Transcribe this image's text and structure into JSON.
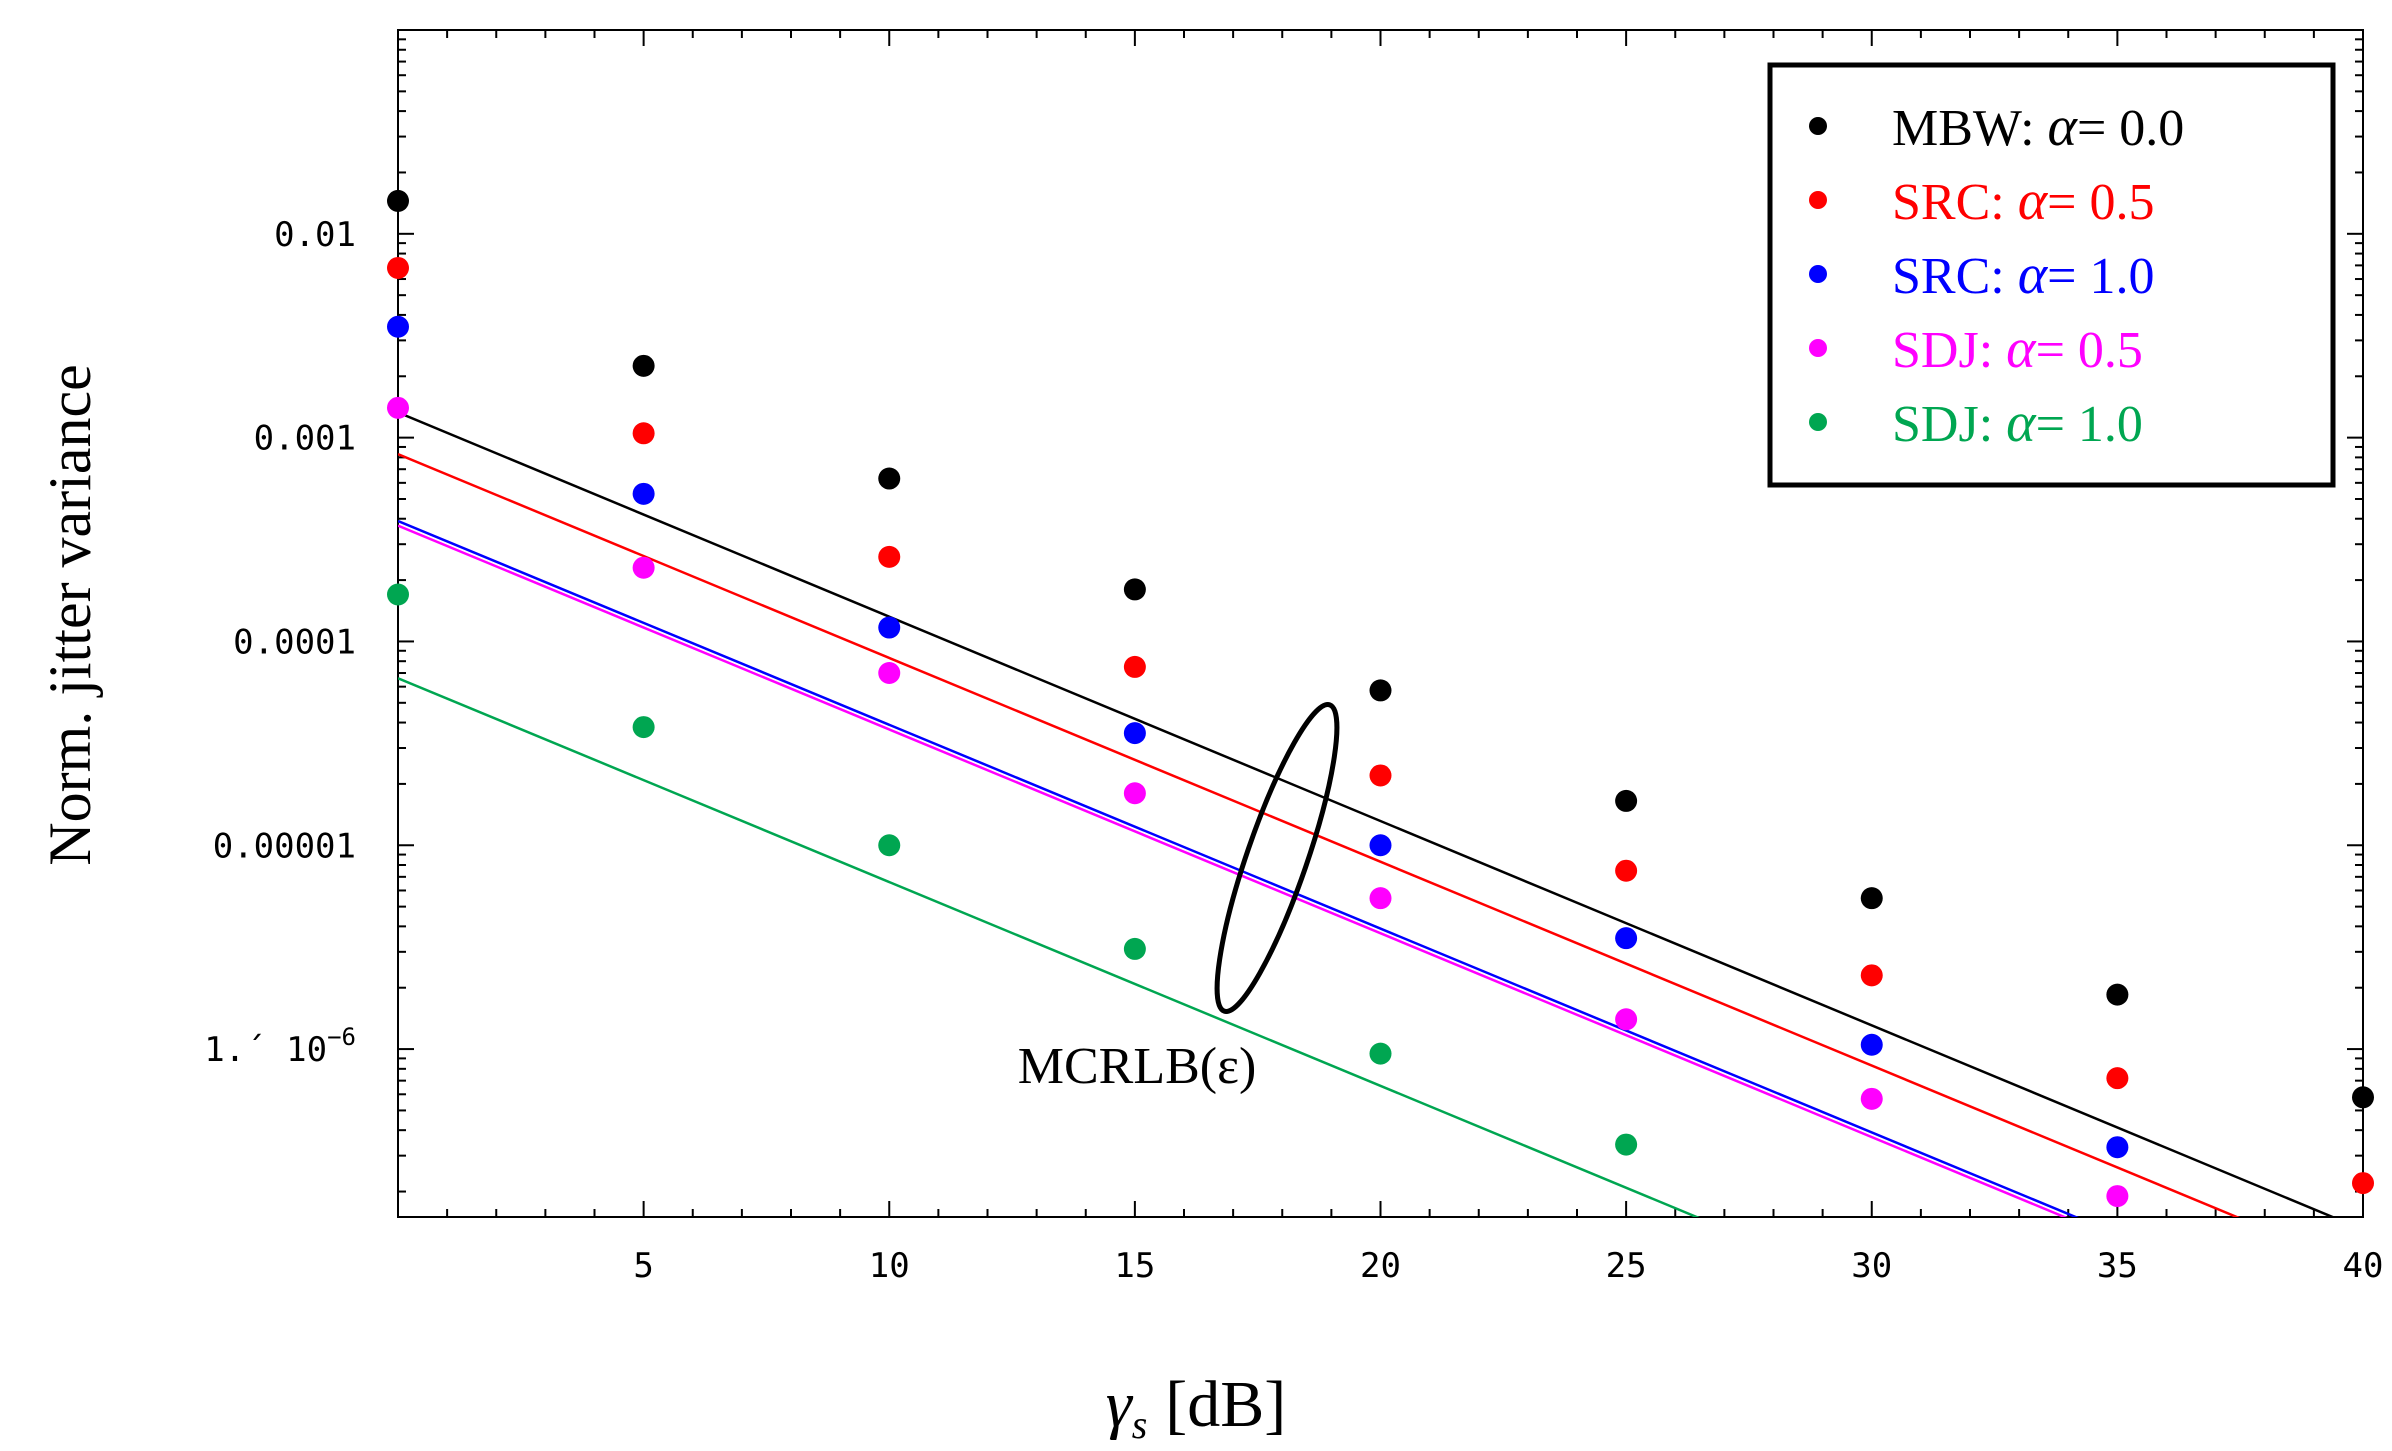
{
  "chart_data": {
    "type": "scatter",
    "xlabel_symbol": "γ",
    "xlabel_subscript": "s",
    "xlabel_unit": "[dB]",
    "ylabel": "Norm. jitter variance",
    "x_scale": "linear",
    "y_scale": "log",
    "xlim": [
      0,
      40
    ],
    "ylim": [
      1.5e-07,
      0.1
    ],
    "x_ticks": [
      5,
      10,
      15,
      20,
      25,
      30,
      35,
      40
    ],
    "y_ticks": [
      {
        "value": 0.01,
        "label": "0.01"
      },
      {
        "value": 0.001,
        "label": "0.001"
      },
      {
        "value": 0.0001,
        "label": "0.0001"
      },
      {
        "value": 1e-05,
        "label": "0.00001"
      },
      {
        "value": 1e-06,
        "label": "1.´ 10",
        "exponent": "−6"
      }
    ],
    "annotation": "MCRLB(ε)",
    "legend_position": "top-right",
    "series": [
      {
        "name": "MBW: ",
        "alpha_text": "α",
        "alpha_value": "= 0.0",
        "color": "#000000",
        "x": [
          0,
          5,
          10,
          15,
          20,
          25,
          30,
          35,
          40
        ],
        "points": [
          0.0145,
          0.00225,
          0.00063,
          0.00018,
          5.75e-05,
          1.65e-05,
          5.5e-06,
          1.85e-06,
          5.8e-07
        ]
      },
      {
        "name": "SRC: ",
        "alpha_text": "α",
        "alpha_value": "= 0.5",
        "color": "#ff0000",
        "x": [
          0,
          5,
          10,
          15,
          20,
          25,
          30,
          35,
          40
        ],
        "points": [
          0.0068,
          0.00105,
          0.00026,
          7.5e-05,
          2.2e-05,
          7.5e-06,
          2.3e-06,
          7.2e-07,
          2.2e-07
        ]
      },
      {
        "name": "SRC: ",
        "alpha_text": "α",
        "alpha_value": "= 1.0",
        "color": "#0000ff",
        "x": [
          0,
          5,
          10,
          15,
          20,
          25,
          30,
          35
        ],
        "points": [
          0.0035,
          0.00053,
          0.000117,
          3.55e-05,
          1e-05,
          3.5e-06,
          1.05e-06,
          3.3e-07
        ]
      },
      {
        "name": "SDJ: ",
        "alpha_text": "α",
        "alpha_value": "= 0.5",
        "color": "#ff00ff",
        "x": [
          0,
          5,
          10,
          15,
          20,
          25,
          30,
          35
        ],
        "points": [
          0.0014,
          0.00023,
          7e-05,
          1.8e-05,
          5.5e-06,
          1.4e-06,
          5.7e-07,
          1.9e-07
        ]
      },
      {
        "name": "SDJ: ",
        "alpha_text": "α",
        "alpha_value": "= 1.0",
        "color": "#00a651",
        "x": [
          0,
          5,
          10,
          15,
          20,
          25
        ],
        "points": [
          0.00017,
          3.8e-05,
          1e-05,
          3.1e-06,
          9.5e-07,
          3.4e-07
        ]
      }
    ],
    "bounds": [
      {
        "color": "#000000",
        "x": [
          0,
          40
        ],
        "y": [
          0.00133,
          1.3e-07
        ]
      },
      {
        "color": "#ff0000",
        "x": [
          0,
          40
        ],
        "y": [
          0.00083,
          8.3e-08
        ]
      },
      {
        "color": "#0000ff",
        "x": [
          0,
          40
        ],
        "y": [
          0.00039,
          3.9e-08
        ]
      },
      {
        "color": "#ff00ff",
        "x": [
          0,
          40
        ],
        "y": [
          0.00037,
          3.7e-08
        ]
      },
      {
        "color": "#00a651",
        "x": [
          0,
          40
        ],
        "y": [
          6.6e-05,
          6.6e-09
        ]
      }
    ]
  }
}
